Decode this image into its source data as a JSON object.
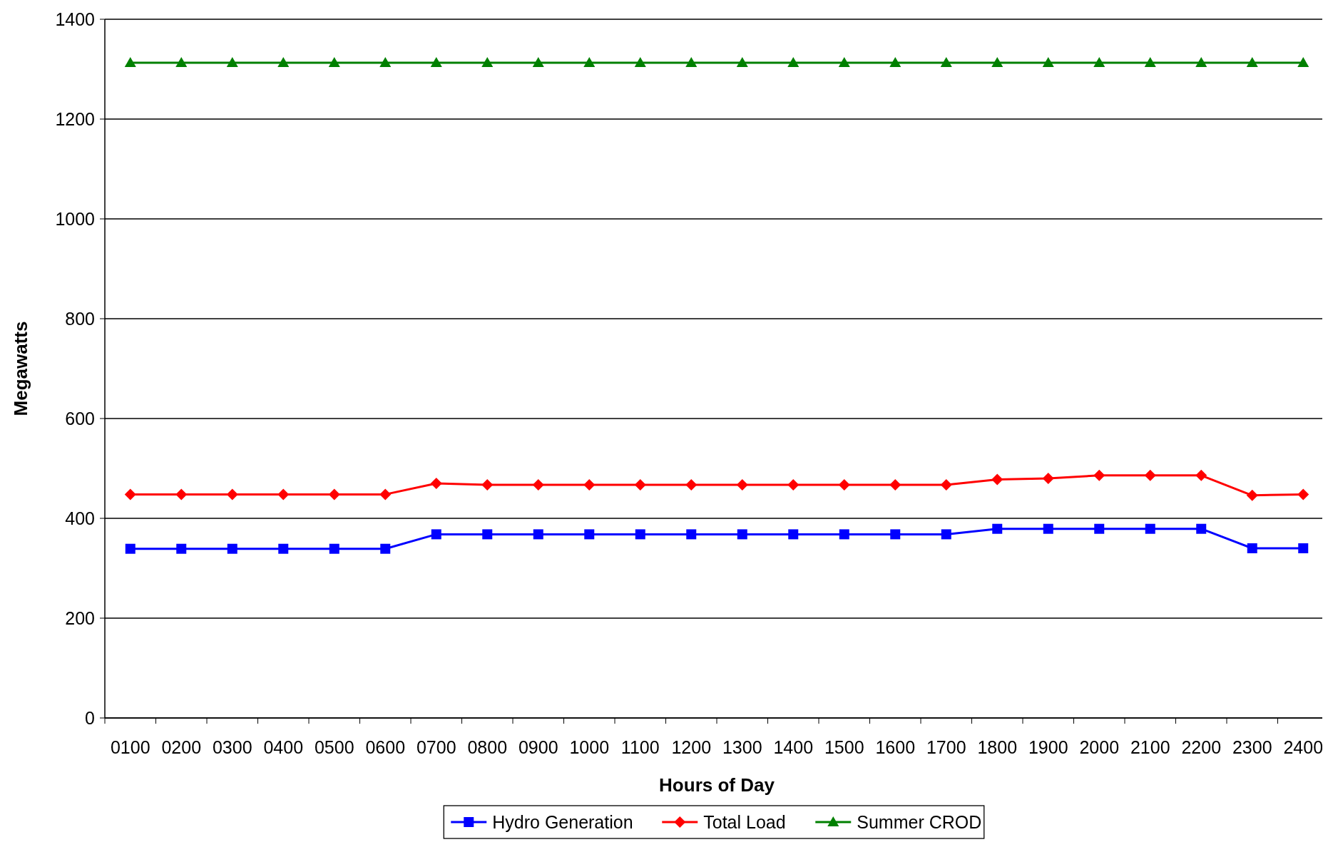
{
  "chart_data": {
    "type": "line",
    "xlabel": "Hours of Day",
    "ylabel": "Megawatts",
    "categories": [
      "0100",
      "0200",
      "0300",
      "0400",
      "0500",
      "0600",
      "0700",
      "0800",
      "0900",
      "1000",
      "1100",
      "1200",
      "1300",
      "1400",
      "1500",
      "1600",
      "1700",
      "1800",
      "1900",
      "2000",
      "2100",
      "2200",
      "2300",
      "2400"
    ],
    "series": [
      {
        "name": "Hydro Generation",
        "color": "#0000ff",
        "marker": "square",
        "values": [
          339,
          339,
          339,
          339,
          339,
          339,
          368,
          368,
          368,
          368,
          368,
          368,
          368,
          368,
          368,
          368,
          368,
          379,
          379,
          379,
          379,
          379,
          340,
          340
        ]
      },
      {
        "name": "Total Load",
        "color": "#ff0000",
        "marker": "diamond",
        "values": [
          448,
          448,
          448,
          448,
          448,
          448,
          470,
          467,
          467,
          467,
          467,
          467,
          467,
          467,
          467,
          467,
          467,
          478,
          480,
          486,
          486,
          486,
          446,
          448
        ]
      },
      {
        "name": "Summer CROD",
        "color": "#008000",
        "marker": "triangle",
        "values": [
          1313,
          1313,
          1313,
          1313,
          1313,
          1313,
          1313,
          1313,
          1313,
          1313,
          1313,
          1313,
          1313,
          1313,
          1313,
          1313,
          1313,
          1313,
          1313,
          1313,
          1313,
          1313,
          1313,
          1313
        ]
      }
    ],
    "ylim": [
      0,
      1400
    ],
    "yticks": [
      0,
      200,
      400,
      600,
      800,
      1000,
      1200,
      1400
    ],
    "grid": "y",
    "legend": "bottom",
    "line_style": "solid"
  }
}
